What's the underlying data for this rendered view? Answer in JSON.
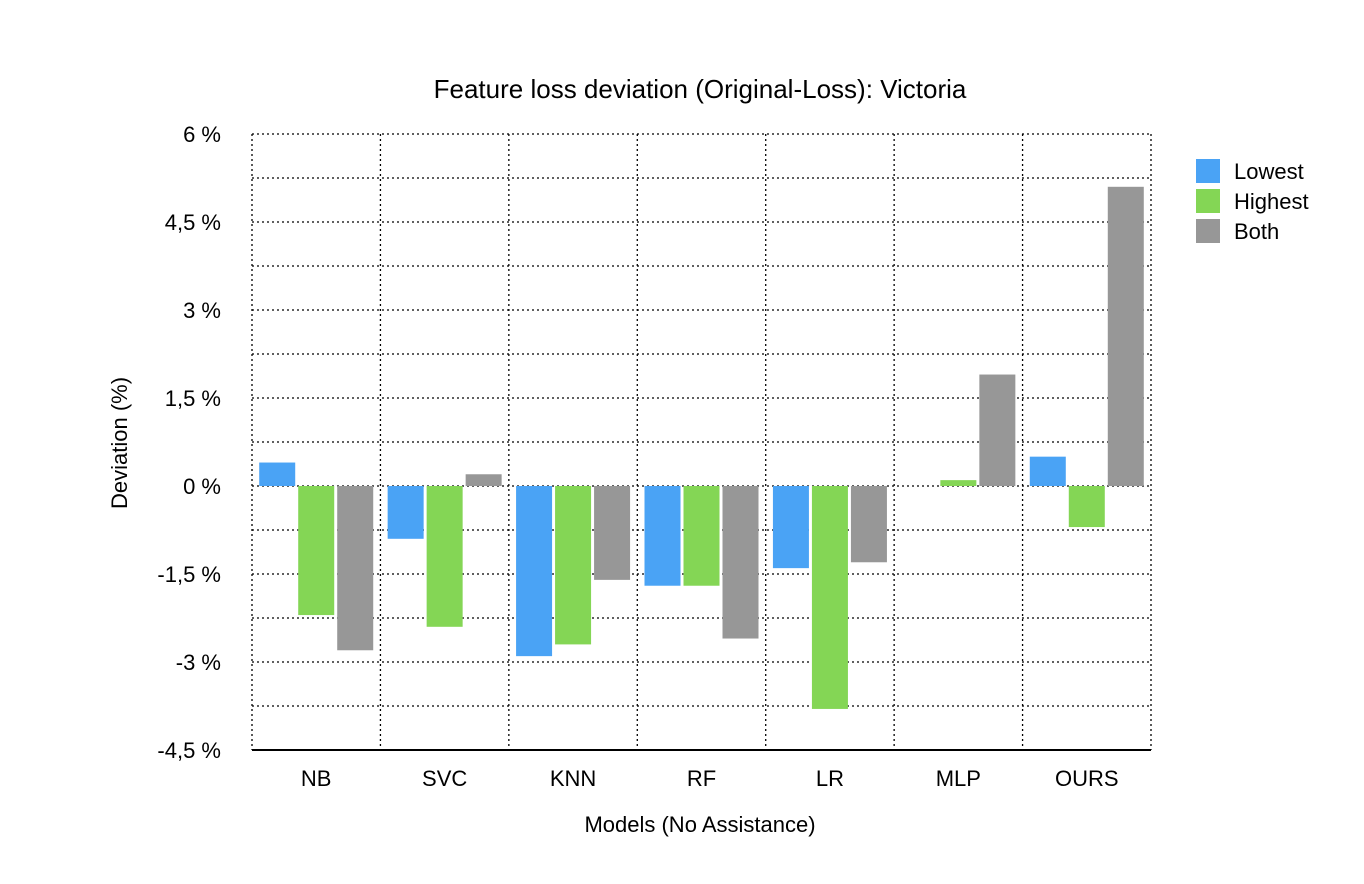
{
  "chart_data": {
    "type": "bar",
    "title": "Feature loss deviation (Original-Loss): Victoria",
    "xlabel": "Models (No Assistance)",
    "ylabel": "Deviation (%)",
    "categories": [
      "NB",
      "SVC",
      "KNN",
      "RF",
      "LR",
      "MLP",
      "OURS"
    ],
    "series": [
      {
        "name": "Lowest",
        "color": "#4aa3f5",
        "values": [
          0.4,
          -0.9,
          -2.9,
          -1.7,
          -1.4,
          0.0,
          0.5
        ]
      },
      {
        "name": "Highest",
        "color": "#84d655",
        "values": [
          -2.2,
          -2.4,
          -2.7,
          -1.7,
          -3.8,
          0.1,
          -0.7
        ]
      },
      {
        "name": "Both",
        "color": "#979797",
        "values": [
          -2.8,
          0.2,
          -1.6,
          -2.6,
          -1.3,
          1.9,
          5.1
        ]
      }
    ],
    "ylim": [
      -4.5,
      6
    ],
    "yticks": [
      6,
      4.5,
      3,
      1.5,
      0,
      -1.5,
      -3,
      -4.5
    ],
    "ytick_labels": [
      "6 %",
      "4,5 %",
      "3 %",
      "1,5 %",
      "0 %",
      "-1,5 %",
      "-3 %",
      "-4,5 %"
    ],
    "grid": true,
    "legend_position": "top-right"
  }
}
